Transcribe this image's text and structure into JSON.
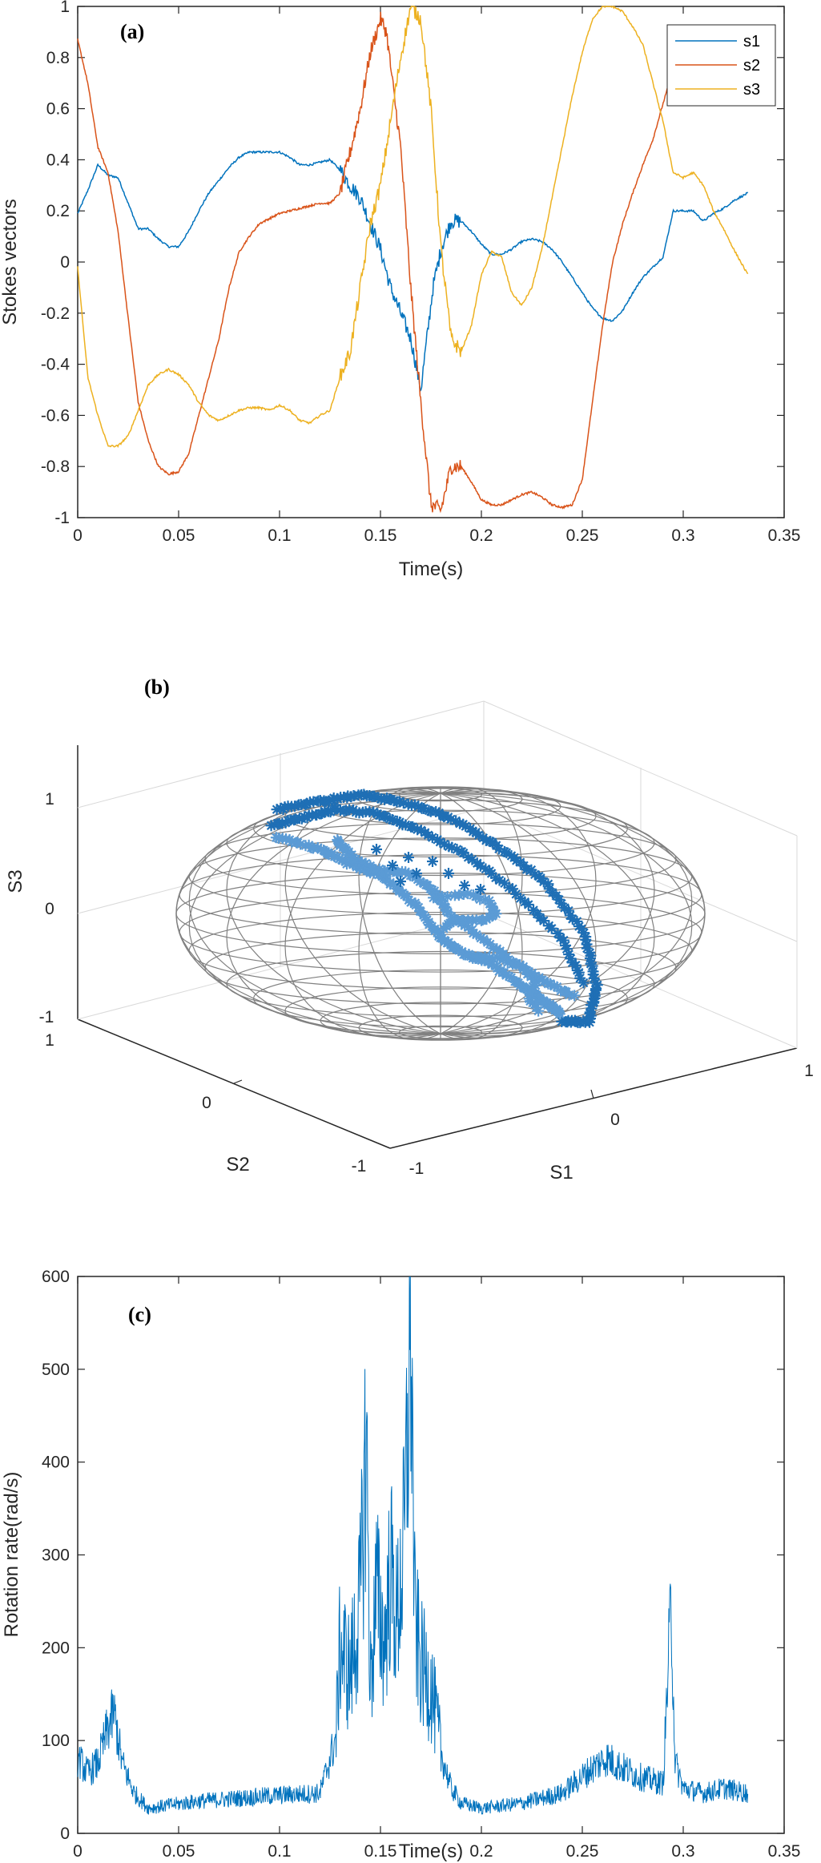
{
  "chart_data": [
    {
      "type": "line",
      "panel_label": "(a)",
      "xlabel": "Time(s)",
      "ylabel": "Stokes vectors",
      "xlim": [
        0,
        0.35
      ],
      "ylim": [
        -1,
        1
      ],
      "xticks": [
        "0",
        "0.05",
        "0.1",
        "0.15",
        "0.2",
        "0.25",
        "0.3",
        "0.35"
      ],
      "yticks": [
        "-1",
        "-0.8",
        "-0.6",
        "-0.4",
        "-0.2",
        "0",
        "0.2",
        "0.4",
        "0.6",
        "0.8",
        "1"
      ],
      "legend_position": "top-right",
      "series": [
        {
          "name": "s1",
          "color": "#0072BD",
          "points": [
            [
              0,
              0.19
            ],
            [
              0.005,
              0.28
            ],
            [
              0.01,
              0.38
            ],
            [
              0.015,
              0.34
            ],
            [
              0.02,
              0.33
            ],
            [
              0.025,
              0.23
            ],
            [
              0.03,
              0.13
            ],
            [
              0.035,
              0.13
            ],
            [
              0.04,
              0.09
            ],
            [
              0.045,
              0.06
            ],
            [
              0.05,
              0.06
            ],
            [
              0.055,
              0.12
            ],
            [
              0.06,
              0.2
            ],
            [
              0.065,
              0.27
            ],
            [
              0.07,
              0.32
            ],
            [
              0.075,
              0.37
            ],
            [
              0.08,
              0.41
            ],
            [
              0.085,
              0.43
            ],
            [
              0.09,
              0.43
            ],
            [
              0.095,
              0.43
            ],
            [
              0.1,
              0.43
            ],
            [
              0.105,
              0.41
            ],
            [
              0.11,
              0.38
            ],
            [
              0.115,
              0.38
            ],
            [
              0.12,
              0.39
            ],
            [
              0.125,
              0.4
            ],
            [
              0.13,
              0.36
            ],
            [
              0.135,
              0.3
            ],
            [
              0.14,
              0.25
            ],
            [
              0.145,
              0.15
            ],
            [
              0.15,
              0.05
            ],
            [
              0.155,
              -0.1
            ],
            [
              0.16,
              -0.2
            ],
            [
              0.165,
              -0.3
            ],
            [
              0.17,
              -0.5
            ],
            [
              0.173,
              -0.3
            ],
            [
              0.176,
              -0.1
            ],
            [
              0.18,
              0.05
            ],
            [
              0.185,
              0.16
            ],
            [
              0.19,
              0.16
            ],
            [
              0.195,
              0.12
            ],
            [
              0.2,
              0.07
            ],
            [
              0.205,
              0.03
            ],
            [
              0.21,
              0.03
            ],
            [
              0.215,
              0.05
            ],
            [
              0.22,
              0.08
            ],
            [
              0.225,
              0.09
            ],
            [
              0.23,
              0.08
            ],
            [
              0.235,
              0.05
            ],
            [
              0.24,
              0.0
            ],
            [
              0.245,
              -0.06
            ],
            [
              0.25,
              -0.12
            ],
            [
              0.255,
              -0.18
            ],
            [
              0.26,
              -0.22
            ],
            [
              0.265,
              -0.23
            ],
            [
              0.27,
              -0.19
            ],
            [
              0.275,
              -0.12
            ],
            [
              0.28,
              -0.06
            ],
            [
              0.285,
              -0.02
            ],
            [
              0.29,
              0.02
            ],
            [
              0.295,
              0.2
            ],
            [
              0.3,
              0.2
            ],
            [
              0.305,
              0.2
            ],
            [
              0.31,
              0.16
            ],
            [
              0.315,
              0.19
            ],
            [
              0.32,
              0.21
            ],
            [
              0.325,
              0.24
            ],
            [
              0.332,
              0.27
            ]
          ]
        },
        {
          "name": "s2",
          "color": "#D95319",
          "points": [
            [
              0,
              0.87
            ],
            [
              0.005,
              0.7
            ],
            [
              0.01,
              0.45
            ],
            [
              0.015,
              0.35
            ],
            [
              0.02,
              0.12
            ],
            [
              0.025,
              -0.22
            ],
            [
              0.03,
              -0.55
            ],
            [
              0.035,
              -0.7
            ],
            [
              0.04,
              -0.8
            ],
            [
              0.045,
              -0.83
            ],
            [
              0.05,
              -0.82
            ],
            [
              0.055,
              -0.75
            ],
            [
              0.06,
              -0.6
            ],
            [
              0.065,
              -0.45
            ],
            [
              0.07,
              -0.3
            ],
            [
              0.075,
              -0.1
            ],
            [
              0.08,
              0.04
            ],
            [
              0.085,
              0.1
            ],
            [
              0.09,
              0.15
            ],
            [
              0.095,
              0.17
            ],
            [
              0.1,
              0.19
            ],
            [
              0.105,
              0.2
            ],
            [
              0.11,
              0.21
            ],
            [
              0.115,
              0.22
            ],
            [
              0.12,
              0.23
            ],
            [
              0.125,
              0.23
            ],
            [
              0.13,
              0.27
            ],
            [
              0.135,
              0.43
            ],
            [
              0.14,
              0.6
            ],
            [
              0.145,
              0.82
            ],
            [
              0.15,
              0.95
            ],
            [
              0.153,
              0.9
            ],
            [
              0.156,
              0.7
            ],
            [
              0.16,
              0.45
            ],
            [
              0.165,
              -0.1
            ],
            [
              0.17,
              -0.55
            ],
            [
              0.175,
              -0.95
            ],
            [
              0.18,
              -0.97
            ],
            [
              0.185,
              -0.8
            ],
            [
              0.19,
              -0.8
            ],
            [
              0.195,
              -0.86
            ],
            [
              0.2,
              -0.93
            ],
            [
              0.205,
              -0.95
            ],
            [
              0.21,
              -0.95
            ],
            [
              0.215,
              -0.93
            ],
            [
              0.22,
              -0.91
            ],
            [
              0.225,
              -0.9
            ],
            [
              0.23,
              -0.92
            ],
            [
              0.235,
              -0.95
            ],
            [
              0.24,
              -0.96
            ],
            [
              0.245,
              -0.95
            ],
            [
              0.25,
              -0.85
            ],
            [
              0.255,
              -0.55
            ],
            [
              0.26,
              -0.25
            ],
            [
              0.265,
              0.0
            ],
            [
              0.27,
              0.15
            ],
            [
              0.275,
              0.27
            ],
            [
              0.28,
              0.38
            ],
            [
              0.285,
              0.48
            ],
            [
              0.29,
              0.62
            ],
            [
              0.293,
              0.7
            ]
          ]
        },
        {
          "name": "s3",
          "color": "#EDB120",
          "points": [
            [
              0,
              -0.02
            ],
            [
              0.005,
              -0.45
            ],
            [
              0.01,
              -0.6
            ],
            [
              0.015,
              -0.72
            ],
            [
              0.02,
              -0.72
            ],
            [
              0.025,
              -0.68
            ],
            [
              0.03,
              -0.58
            ],
            [
              0.035,
              -0.48
            ],
            [
              0.04,
              -0.44
            ],
            [
              0.045,
              -0.42
            ],
            [
              0.05,
              -0.44
            ],
            [
              0.055,
              -0.48
            ],
            [
              0.06,
              -0.55
            ],
            [
              0.065,
              -0.6
            ],
            [
              0.07,
              -0.62
            ],
            [
              0.075,
              -0.6
            ],
            [
              0.08,
              -0.58
            ],
            [
              0.085,
              -0.57
            ],
            [
              0.09,
              -0.57
            ],
            [
              0.095,
              -0.58
            ],
            [
              0.1,
              -0.56
            ],
            [
              0.105,
              -0.58
            ],
            [
              0.11,
              -0.62
            ],
            [
              0.115,
              -0.63
            ],
            [
              0.12,
              -0.6
            ],
            [
              0.125,
              -0.58
            ],
            [
              0.13,
              -0.45
            ],
            [
              0.135,
              -0.35
            ],
            [
              0.14,
              -0.1
            ],
            [
              0.145,
              0.15
            ],
            [
              0.15,
              0.3
            ],
            [
              0.155,
              0.55
            ],
            [
              0.16,
              0.8
            ],
            [
              0.165,
              1.0
            ],
            [
              0.17,
              0.95
            ],
            [
              0.175,
              0.6
            ],
            [
              0.18,
              0.05
            ],
            [
              0.185,
              -0.3
            ],
            [
              0.19,
              -0.35
            ],
            [
              0.195,
              -0.25
            ],
            [
              0.2,
              -0.05
            ],
            [
              0.205,
              0.04
            ],
            [
              0.21,
              0.02
            ],
            [
              0.215,
              -0.12
            ],
            [
              0.22,
              -0.17
            ],
            [
              0.225,
              -0.1
            ],
            [
              0.23,
              0.05
            ],
            [
              0.235,
              0.25
            ],
            [
              0.24,
              0.45
            ],
            [
              0.245,
              0.65
            ],
            [
              0.25,
              0.82
            ],
            [
              0.255,
              0.95
            ],
            [
              0.26,
              1.0
            ],
            [
              0.265,
              1.0
            ],
            [
              0.27,
              0.98
            ],
            [
              0.275,
              0.92
            ],
            [
              0.28,
              0.85
            ],
            [
              0.285,
              0.7
            ],
            [
              0.29,
              0.55
            ],
            [
              0.295,
              0.35
            ],
            [
              0.3,
              0.33
            ],
            [
              0.305,
              0.35
            ],
            [
              0.31,
              0.3
            ],
            [
              0.315,
              0.2
            ],
            [
              0.32,
              0.13
            ],
            [
              0.325,
              0.05
            ],
            [
              0.332,
              -0.05
            ]
          ]
        }
      ]
    },
    {
      "type": "scatter",
      "panel_label": "(b)",
      "xlabel": "S1",
      "ylabel": "S2",
      "zlabel": "S3",
      "xticks": [
        "-1",
        "0",
        "1"
      ],
      "yticks": [
        "-1",
        "0",
        "1"
      ],
      "zticks": [
        "-1",
        "0",
        "1"
      ],
      "marker": "*",
      "sphere_mesh_color": "#808080",
      "trajectory_colors": [
        "#1F6FB5",
        "#5B9BD5"
      ]
    },
    {
      "type": "line",
      "panel_label": "(c)",
      "xlabel": "Time(s)",
      "ylabel": "Rotation rate(rad/s)",
      "xlim": [
        0,
        0.35
      ],
      "ylim": [
        0,
        600
      ],
      "xticks": [
        "0",
        "0.05",
        "0.1",
        "0.15",
        "0.2",
        "0.25",
        "0.3",
        "0.35"
      ],
      "yticks": [
        "0",
        "100",
        "200",
        "300",
        "400",
        "500",
        "600"
      ],
      "series": [
        {
          "color": "#0072BD",
          "points": [
            [
              0,
              75
            ],
            [
              0.005,
              60
            ],
            [
              0.01,
              70
            ],
            [
              0.015,
              105
            ],
            [
              0.018,
              120
            ],
            [
              0.022,
              70
            ],
            [
              0.028,
              40
            ],
            [
              0.035,
              25
            ],
            [
              0.045,
              28
            ],
            [
              0.06,
              32
            ],
            [
              0.08,
              35
            ],
            [
              0.1,
              38
            ],
            [
              0.12,
              40
            ],
            [
              0.128,
              95
            ],
            [
              0.13,
              180
            ],
            [
              0.135,
              150
            ],
            [
              0.14,
              220
            ],
            [
              0.143,
              380
            ],
            [
              0.145,
              140
            ],
            [
              0.148,
              230
            ],
            [
              0.152,
              180
            ],
            [
              0.155,
              250
            ],
            [
              0.158,
              200
            ],
            [
              0.162,
              280
            ],
            [
              0.165,
              500
            ],
            [
              0.167,
              200
            ],
            [
              0.17,
              160
            ],
            [
              0.175,
              140
            ],
            [
              0.18,
              80
            ],
            [
              0.185,
              45
            ],
            [
              0.19,
              30
            ],
            [
              0.2,
              25
            ],
            [
              0.22,
              30
            ],
            [
              0.24,
              40
            ],
            [
              0.255,
              65
            ],
            [
              0.262,
              75
            ],
            [
              0.27,
              65
            ],
            [
              0.28,
              55
            ],
            [
              0.29,
              50
            ],
            [
              0.294,
              230
            ],
            [
              0.296,
              70
            ],
            [
              0.3,
              45
            ],
            [
              0.31,
              40
            ],
            [
              0.32,
              45
            ],
            [
              0.332,
              40
            ]
          ]
        }
      ]
    }
  ]
}
